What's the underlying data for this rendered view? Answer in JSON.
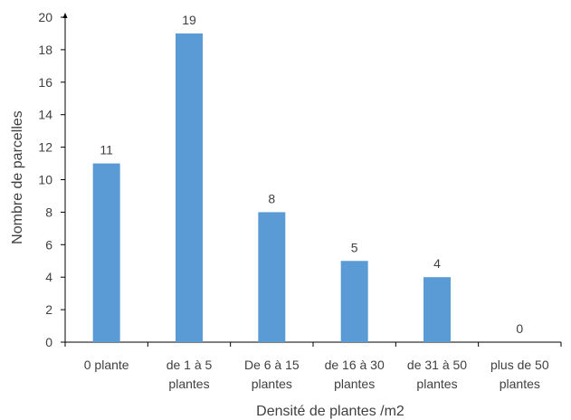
{
  "chart_data": {
    "type": "bar",
    "categories": [
      [
        "0 plante"
      ],
      [
        "de 1 à 5",
        "plantes"
      ],
      [
        "De 6 à 15",
        "plantes"
      ],
      [
        "de 16 à 30",
        "plantes"
      ],
      [
        "de 31 à 50",
        "plantes"
      ],
      [
        "plus de 50",
        "plantes"
      ]
    ],
    "values": [
      11,
      19,
      8,
      5,
      4,
      0
    ],
    "xlabel": "Densité de plantes /m2",
    "ylabel": "Nombre de parcelles",
    "ylim": [
      0,
      20
    ],
    "yticks": [
      0,
      2,
      4,
      6,
      8,
      10,
      12,
      14,
      16,
      18,
      20
    ],
    "grid": false,
    "data_labels": true,
    "bar_color": "#5B9BD5",
    "axis_color": "#000000"
  }
}
